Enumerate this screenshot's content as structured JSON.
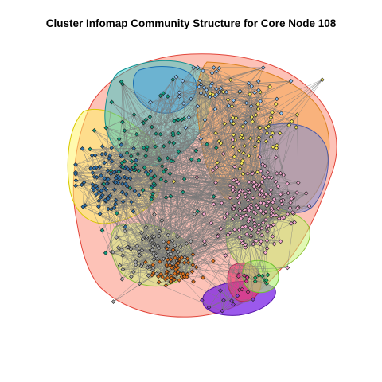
{
  "title": "Cluster Infomap Community Structure for Core Node 108",
  "colors": {
    "edge": "#7a7a7a",
    "node_stroke": "#1a1a1a",
    "background": "#ffffff"
  },
  "communities": [
    {
      "name": "blue",
      "node_color": "#2f6fa6",
      "hull_fill": "#fff46a",
      "hull_stroke": "#d8c800",
      "node_count": 140
    },
    {
      "name": "teal",
      "node_color": "#129a7f",
      "hull_fill": "#19c7c7",
      "hull_stroke": "#0e8e8e",
      "node_count": 120
    },
    {
      "name": "yellow",
      "node_color": "#f2e45a",
      "hull_fill": "#7f8fd4",
      "hull_stroke": "#4a5aa8",
      "node_count": 90
    },
    {
      "name": "light-blue",
      "node_color": "#8ec0ee",
      "hull_fill": "#3aa0e8",
      "hull_stroke": "#1b6fb3",
      "node_count": 70
    },
    {
      "name": "pink",
      "node_color": "#f3a9cf",
      "hull_fill": "#f6a64d",
      "hull_stroke": "#d9801f",
      "node_count": 260
    },
    {
      "name": "grey",
      "node_color": "#a8a8a8",
      "hull_fill": "#c9f274",
      "hull_stroke": "#8fc23a",
      "node_count": 110
    },
    {
      "name": "orange",
      "node_color": "#d9701f",
      "hull_fill": "#fb8f7b",
      "hull_stroke": "#e2453a",
      "node_count": 85
    },
    {
      "name": "violet",
      "node_color": "#8b3fd1",
      "hull_fill": "#7a22e6",
      "hull_stroke": "#5513a8",
      "node_count": 12
    },
    {
      "name": "magenta",
      "node_color": "#d93a8c",
      "hull_fill": "#ee3c72",
      "hull_stroke": "#b3224f",
      "node_count": 12
    },
    {
      "name": "green",
      "node_color": "#1fb36a",
      "hull_fill": "#aef072",
      "hull_stroke": "#6fbf2f",
      "node_count": 10
    }
  ]
}
